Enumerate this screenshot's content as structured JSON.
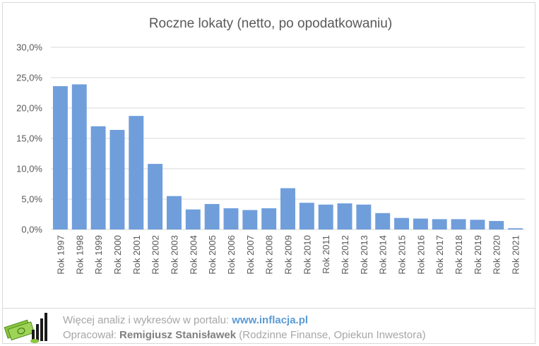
{
  "chart_data": {
    "type": "bar",
    "title": "Roczne lokaty (netto, po opodatkowaniu)",
    "categories": [
      "Rok 1997",
      "Rok 1998",
      "Rok 1999",
      "Rok 2000",
      "Rok 2001",
      "Rok 2002",
      "Rok 2003",
      "Rok 2004",
      "Rok 2005",
      "Rok 2006",
      "Rok 2007",
      "Rok 2008",
      "Rok 2009",
      "Rok 2010",
      "Rok 2011",
      "Rok 2012",
      "Rok 2013",
      "Rok 2014",
      "Rok 2015",
      "Rok 2016",
      "Rok 2017",
      "Rok 2018",
      "Rok 2019",
      "Rok 2020",
      "Rok 2021"
    ],
    "values": [
      23.6,
      23.9,
      17.0,
      16.4,
      18.7,
      10.8,
      5.5,
      3.3,
      4.2,
      3.5,
      3.2,
      3.5,
      6.8,
      4.4,
      4.1,
      4.3,
      4.1,
      2.7,
      1.9,
      1.8,
      1.7,
      1.7,
      1.6,
      1.4,
      0.2
    ],
    "ylim": [
      0,
      30
    ],
    "yticks": [
      0,
      5,
      10,
      15,
      20,
      25,
      30
    ],
    "ytick_labels": [
      "0,0%",
      "5,0%",
      "10,0%",
      "15,0%",
      "20,0%",
      "25,0%",
      "30,0%"
    ],
    "grid": true,
    "bar_color": "#6f9edb",
    "grid_color": "#d9d9d9"
  },
  "footer": {
    "line1_prefix": "Więcej analiz i wykresów w portalu: ",
    "line1_url": "www.inflacja.pl",
    "line2_prefix": "Opracował: ",
    "line2_author": "Remigiusz Stanisławek",
    "line2_suffix": " (Rodzinne Finanse, Opiekun Inwestora)",
    "logo_icon": "inflacja-logo-icon"
  }
}
